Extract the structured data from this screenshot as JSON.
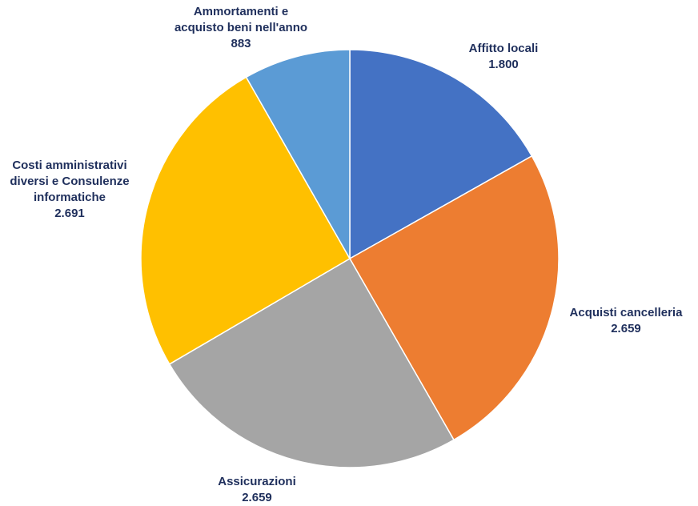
{
  "chart_data": {
    "type": "pie",
    "title": "",
    "slices": [
      {
        "label": "Affitto locali",
        "value": 1800,
        "value_text": "1.800",
        "color": "#4472C4"
      },
      {
        "label": "Acquisti cancelleria",
        "value": 2659,
        "value_text": "2.659",
        "color": "#ED7D31"
      },
      {
        "label": "Assicurazioni",
        "value": 2659,
        "value_text": "2.659",
        "color": "#A5A5A5"
      },
      {
        "label": "Costi amministrativi\ndiversi e Consulenze\ninformatiche",
        "value": 2691,
        "value_text": "2.691",
        "color": "#FFC000"
      },
      {
        "label": "Ammortamenti e\nacquisto beni nell'anno",
        "value": 883,
        "value_text": "883",
        "color": "#5B9BD5"
      }
    ],
    "start": "12 o'clock",
    "direction": "clockwise",
    "label_color": "#1f2f5c",
    "legend": "none"
  }
}
